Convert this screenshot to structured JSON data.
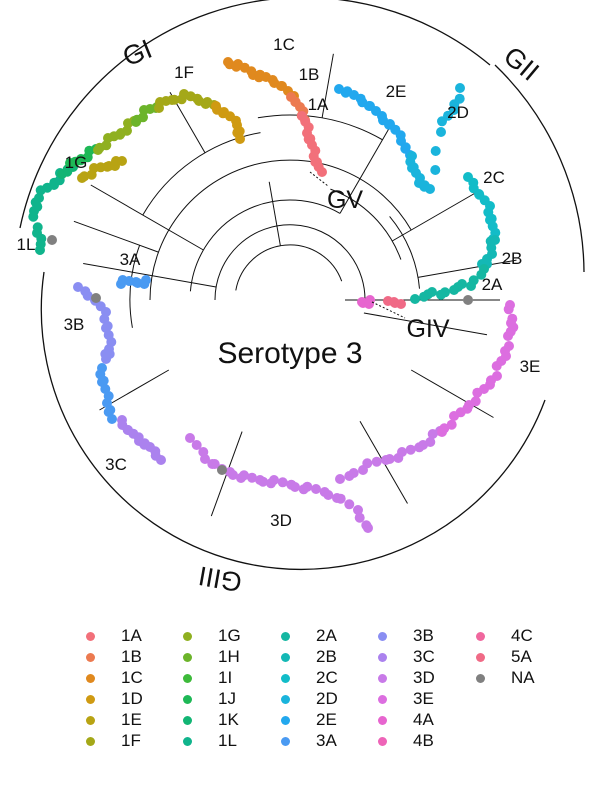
{
  "title": "Serotype 3",
  "genotypes": [
    {
      "id": "GI",
      "label": "GI"
    },
    {
      "id": "GII",
      "label": "GII"
    },
    {
      "id": "GIII",
      "label": "GIII"
    },
    {
      "id": "GIV",
      "label": "GIV"
    },
    {
      "id": "GV",
      "label": "GV"
    }
  ],
  "subtype_labels": [
    "1A",
    "1B",
    "1C",
    "1F",
    "1G",
    "1L",
    "2A",
    "2B",
    "2C",
    "2D",
    "2E",
    "3A",
    "3B",
    "3C",
    "3D",
    "3E"
  ],
  "legend": [
    {
      "label": "1A",
      "color": "#f2707a"
    },
    {
      "label": "1B",
      "color": "#ec7a50"
    },
    {
      "label": "1C",
      "color": "#e0891e"
    },
    {
      "label": "1D",
      "color": "#cf9a12"
    },
    {
      "label": "1E",
      "color": "#b8a313"
    },
    {
      "label": "1F",
      "color": "#a4a818"
    },
    {
      "label": "1G",
      "color": "#8fb020"
    },
    {
      "label": "1H",
      "color": "#6cb42a"
    },
    {
      "label": "1I",
      "color": "#3dba3a"
    },
    {
      "label": "1J",
      "color": "#1eb856"
    },
    {
      "label": "1K",
      "color": "#12b574"
    },
    {
      "label": "1L",
      "color": "#10b48c"
    },
    {
      "label": "2A",
      "color": "#15b7a2"
    },
    {
      "label": "2B",
      "color": "#14b8b5"
    },
    {
      "label": "2C",
      "color": "#12bcc8"
    },
    {
      "label": "2D",
      "color": "#1ab4dc"
    },
    {
      "label": "2E",
      "color": "#22a8ee"
    },
    {
      "label": "3A",
      "color": "#4a9af2"
    },
    {
      "label": "3B",
      "color": "#8a8ef2"
    },
    {
      "label": "3C",
      "color": "#ab82ee"
    },
    {
      "label": "3D",
      "color": "#c87ae8"
    },
    {
      "label": "3E",
      "color": "#dc6ee0"
    },
    {
      "label": "4A",
      "color": "#e765cf"
    },
    {
      "label": "4B",
      "color": "#ee64b8"
    },
    {
      "label": "4C",
      "color": "#f0679e"
    },
    {
      "label": "5A",
      "color": "#f06a86"
    },
    {
      "label": "NA",
      "color": "#808080"
    }
  ]
}
